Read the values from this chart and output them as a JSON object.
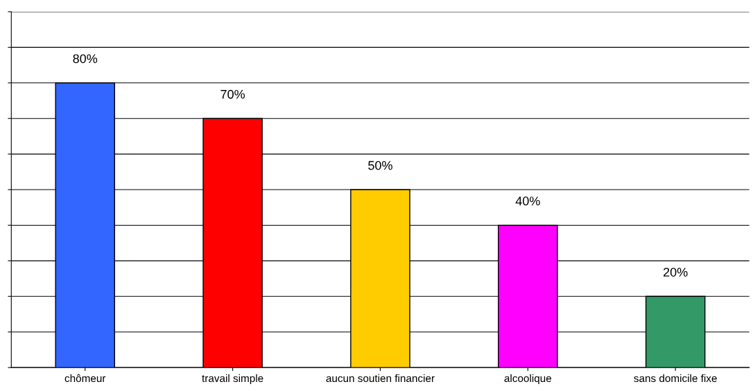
{
  "chart_data": {
    "type": "bar",
    "categories": [
      "chômeur",
      "travail simple",
      "aucun soutien financier",
      "alcoolique",
      "sans domicile fixe"
    ],
    "values": [
      80,
      70,
      50,
      40,
      20
    ],
    "value_labels": [
      "80%",
      "70%",
      "50%",
      "40%",
      "20%"
    ],
    "colors": [
      "#3366ff",
      "#ff0000",
      "#ffcc00",
      "#ff00ff",
      "#339966"
    ],
    "ylim": [
      0,
      100
    ],
    "yticks": [
      {
        "value": 0,
        "label": null
      },
      {
        "value": 10,
        "label": null
      },
      {
        "value": 20,
        "label": null
      },
      {
        "value": 30,
        "label": null
      },
      {
        "value": 40,
        "label": null
      },
      {
        "value": 50,
        "label": null
      },
      {
        "value": 60,
        "label": null
      },
      {
        "value": 70,
        "label": null
      },
      {
        "value": 80,
        "label": null
      },
      {
        "value": 90,
        "label": null
      },
      {
        "value": 100,
        "label": null
      }
    ],
    "tick_labels": "x",
    "grid": "y"
  }
}
